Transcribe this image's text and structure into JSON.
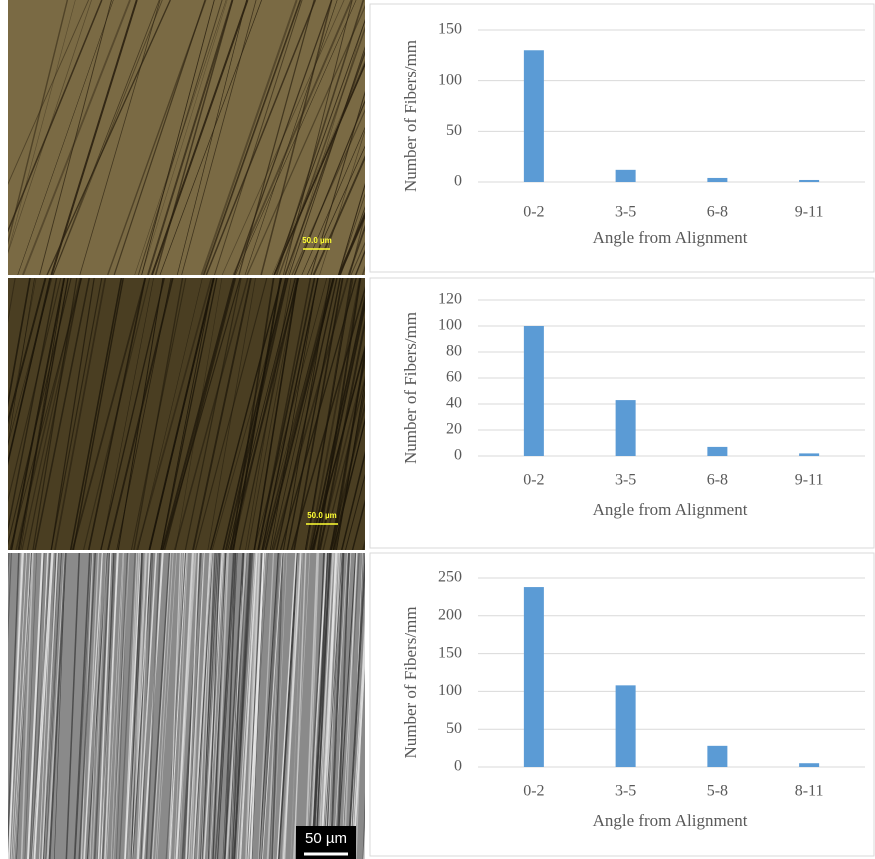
{
  "chart_data": [
    {
      "type": "bar",
      "y_label": "Number  of Fibers/mm",
      "x_label": "Angle from  Alignment",
      "categories": [
        "0-2",
        "3-5",
        "6-8",
        "9-11"
      ],
      "values": [
        130,
        12,
        4,
        2
      ],
      "color": "#5b9bd5",
      "ylim": [
        0,
        150
      ],
      "yticks": [
        0,
        50,
        100,
        150
      ],
      "grid": true
    },
    {
      "type": "bar",
      "y_label": "Number  of Fibers/mm",
      "x_label": "Angle from  Alignment",
      "categories": [
        "0-2",
        "3-5",
        "6-8",
        "9-11"
      ],
      "values": [
        100,
        43,
        7,
        2
      ],
      "color": "#5b9bd5",
      "ylim": [
        0,
        120
      ],
      "yticks": [
        0,
        20,
        40,
        60,
        80,
        100,
        120
      ],
      "grid": true
    },
    {
      "type": "bar",
      "y_label": "Number  of Fibers/mm",
      "x_label": "Angle from  Alignment",
      "categories": [
        "0-2",
        "3-5",
        "5-8",
        "8-11"
      ],
      "values": [
        238,
        108,
        28,
        5
      ],
      "color": "#5b9bd5",
      "ylim": [
        0,
        250
      ],
      "yticks": [
        0,
        50,
        100,
        150,
        200,
        250
      ],
      "grid": true
    }
  ],
  "images": [
    {
      "scale_bar": "50.0 µm"
    },
    {
      "scale_bar": "50.0 µm"
    },
    {
      "scale_bar": "50 µm"
    }
  ]
}
